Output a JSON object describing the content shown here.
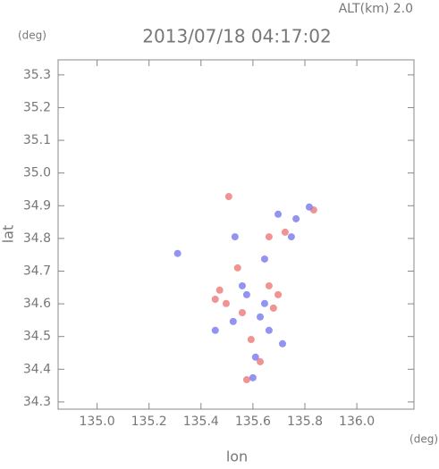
{
  "chart_data": {
    "type": "scatter",
    "title": "2013/07/18 04:17:02",
    "subtitle": "ALT(km) 2.0",
    "y_unit": "(deg)",
    "x_unit": "(deg)",
    "x_label": "lon",
    "y_label": "lat",
    "xlim": [
      134.85,
      136.22
    ],
    "ylim": [
      34.278,
      35.346
    ],
    "xticks": [
      {
        "value": 135,
        "label": "135.0"
      },
      135.2,
      135.4,
      135.6,
      135.8,
      {
        "value": 136,
        "label": "136.0"
      }
    ],
    "yticks": [
      34.3,
      34.4,
      34.5,
      34.6,
      34.7,
      34.8,
      34.9,
      {
        "value": 35,
        "label": "35.0"
      },
      35.1,
      35.2,
      35.3
    ],
    "series": [
      {
        "color": "#f08080",
        "x": [
          135.507,
          135.662,
          135.472,
          135.497,
          135.559,
          135.662,
          135.697,
          135.593,
          135.628,
          135.576,
          135.541,
          135.724,
          135.834,
          135.455,
          135.679
        ],
        "values": [
          34.928,
          34.805,
          34.642,
          34.601,
          34.573,
          34.655,
          34.628,
          34.491,
          34.423,
          34.368,
          34.71,
          34.819,
          34.887,
          34.614,
          34.587
        ]
      },
      {
        "color": "#8080f0",
        "x": [
          135.817,
          135.748,
          135.645,
          135.576,
          135.628,
          135.662,
          135.714,
          135.61,
          135.6,
          135.524,
          135.766,
          135.31,
          135.531,
          135.697,
          135.455,
          135.645,
          135.559
        ],
        "values": [
          34.896,
          34.805,
          34.737,
          34.628,
          34.56,
          34.519,
          34.478,
          34.437,
          34.374,
          34.546,
          34.86,
          34.754,
          34.805,
          34.874,
          34.519,
          34.601,
          34.655
        ]
      }
    ]
  }
}
